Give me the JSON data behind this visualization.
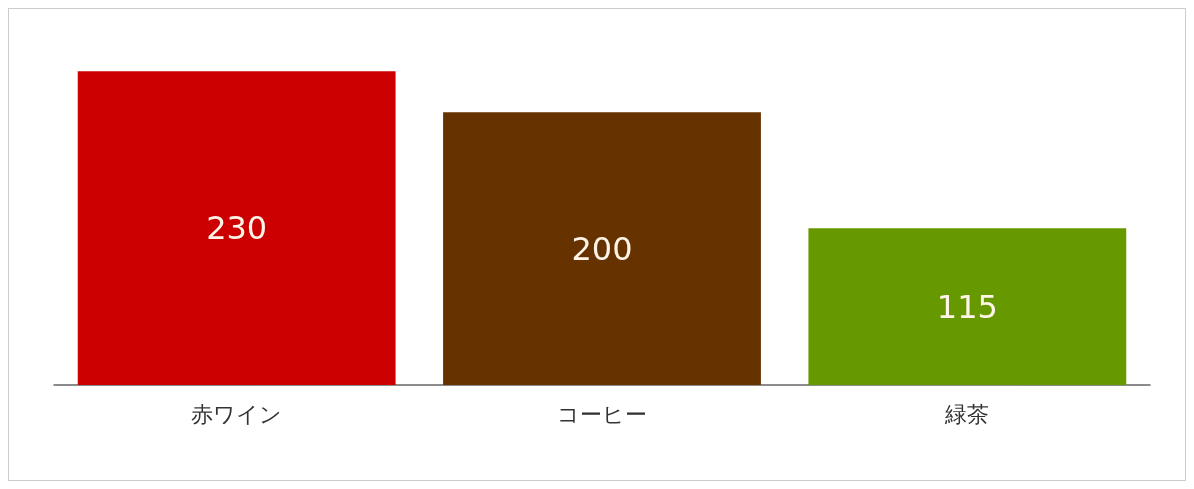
{
  "chart_data": {
    "type": "bar",
    "categories": [
      "赤ワイン",
      "コーヒー",
      "緑茶"
    ],
    "values": [
      230,
      200,
      115
    ],
    "colors": [
      "#cc0000",
      "#663300",
      "#669900"
    ],
    "data_labels": true
  }
}
